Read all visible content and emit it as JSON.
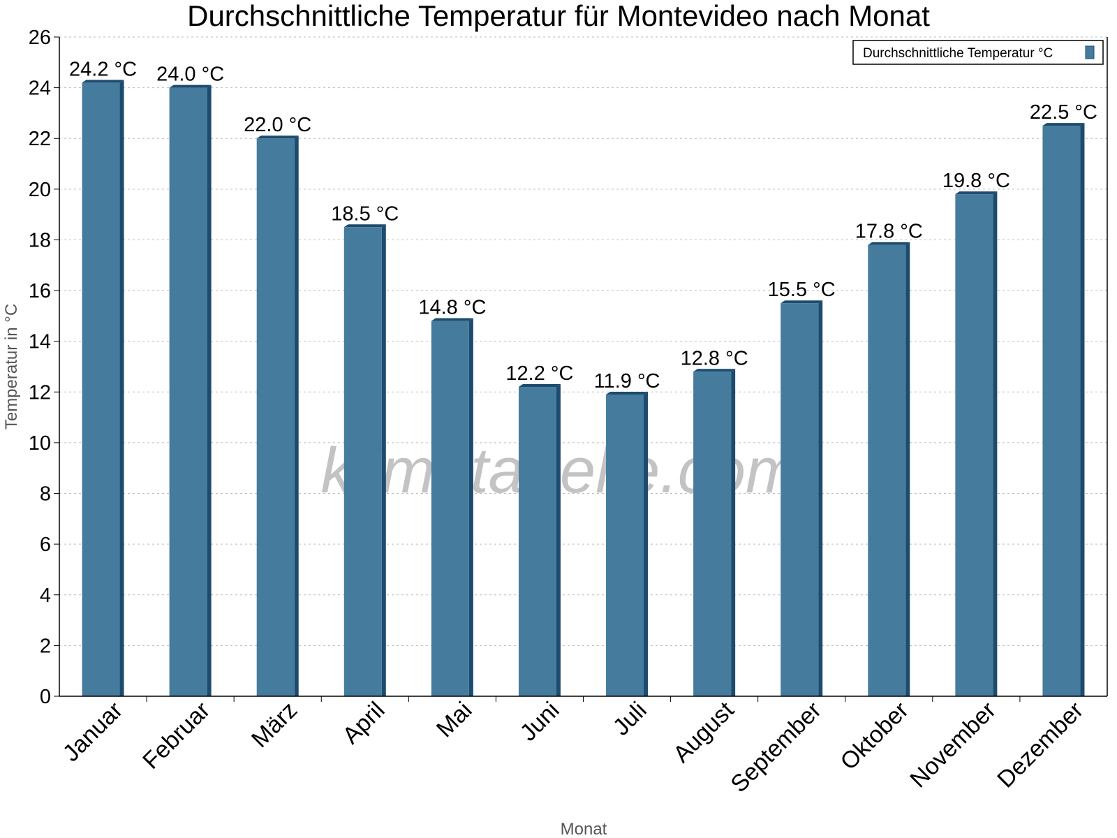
{
  "chart_data": {
    "type": "bar",
    "title": "Durchschnittliche Temperatur für Montevideo nach Monat",
    "xlabel": "Monat",
    "ylabel": "Temperatur in °C",
    "ylim": [
      0,
      26
    ],
    "yticks": [
      0,
      2,
      4,
      6,
      8,
      10,
      12,
      14,
      16,
      18,
      20,
      22,
      24,
      26
    ],
    "grid": true,
    "legend_placement": "top-right",
    "categories": [
      "Januar",
      "Februar",
      "März",
      "April",
      "Mai",
      "Juni",
      "Juli",
      "August",
      "September",
      "Oktober",
      "November",
      "Dezember"
    ],
    "series": [
      {
        "name": "Durchschnittliche Temperatur °C",
        "values": [
          24.2,
          24.0,
          22.0,
          18.5,
          14.8,
          12.2,
          11.9,
          12.8,
          15.5,
          17.8,
          19.8,
          22.5
        ]
      }
    ],
    "data_labels": [
      "24.2 °C",
      "24.0 °C",
      "22.0 °C",
      "18.5 °C",
      "14.8 °C",
      "12.2 °C",
      "11.9 °C",
      "12.8 °C",
      "15.5 °C",
      "17.8 °C",
      "19.8 °C",
      "22.5 °C"
    ],
    "colors": {
      "bar": "#457b9d",
      "bar_edge": "#1d4b6e"
    }
  },
  "watermark": "klimatabelle.com"
}
